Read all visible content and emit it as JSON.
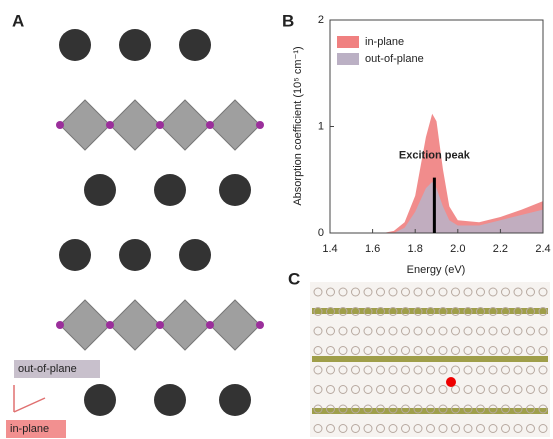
{
  "panel_labels": [
    "A",
    "B",
    "C"
  ],
  "structure_labels": {
    "out_of_plane": "out-of-plane",
    "in_plane": "in-plane"
  },
  "chart_data": {
    "type": "area",
    "x_label": "Energy (eV)",
    "y_label": "Absorption coefficient (10⁵ cm⁻¹)",
    "x": [
      1.4,
      1.6,
      1.65,
      1.7,
      1.75,
      1.8,
      1.85,
      1.88,
      1.9,
      1.93,
      1.96,
      2.0,
      2.1,
      2.2,
      2.3,
      2.4
    ],
    "series": [
      {
        "name": "in-plane",
        "color": "#f08080",
        "values": [
          0,
          0,
          0,
          0.02,
          0.1,
          0.35,
          0.9,
          1.12,
          1.05,
          0.6,
          0.25,
          0.12,
          0.1,
          0.15,
          0.22,
          0.3
        ]
      },
      {
        "name": "out-of-plane",
        "color": "#bbb0c4",
        "values": [
          0,
          0,
          0,
          0,
          0.05,
          0.2,
          0.42,
          0.48,
          0.42,
          0.25,
          0.12,
          0.07,
          0.07,
          0.12,
          0.17,
          0.22
        ]
      }
    ],
    "xlim": [
      1.4,
      2.4
    ],
    "ylim": [
      0,
      2
    ],
    "xticks": [
      1.4,
      1.6,
      1.8,
      {
        "value": 2,
        "label": "2.0"
      },
      2.2,
      2.4
    ],
    "yticks": [
      0,
      1,
      2
    ],
    "annotation": {
      "text": "Excition peak",
      "x": 1.89,
      "y": 0.52
    },
    "legend": "upper-left"
  }
}
